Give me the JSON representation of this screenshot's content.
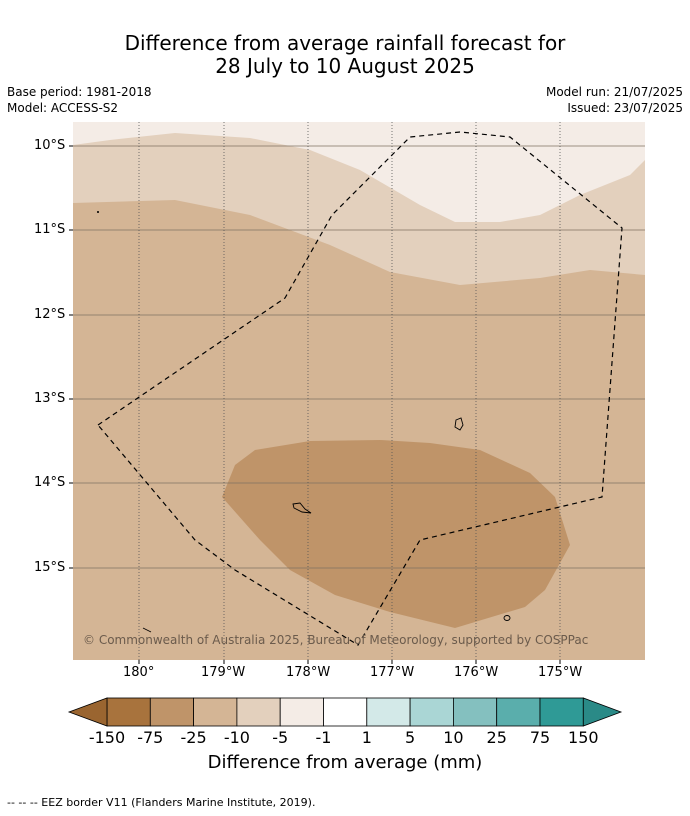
{
  "title_line1": "Difference from average rainfall forecast for",
  "title_line2": "28 July to 10 August 2025",
  "meta": {
    "base_period": "Base period: 1981-2018",
    "model": "Model: ACCESS-S2",
    "model_run": "Model run: 21/07/2025",
    "issued": "Issued: 23/07/2025"
  },
  "lat_labels": [
    "10°S",
    "11°S",
    "12°S",
    "13°S",
    "14°S",
    "15°S"
  ],
  "lon_labels": [
    "180°",
    "179°W",
    "178°W",
    "177°W",
    "176°W",
    "175°W"
  ],
  "copyright": "© Commonwealth of Australia 2025, Bureau of Meteorology, supported by COSPPac",
  "colorbar": {
    "labels": [
      "-150",
      "-75",
      "-25",
      "-10",
      "-5",
      "-1",
      "1",
      "5",
      "10",
      "25",
      "75",
      "150"
    ],
    "colors": [
      "#a8733d",
      "#bf9469",
      "#d4b595",
      "#e3d0bd",
      "#f4ece6",
      "#ffffff",
      "#d3e9e8",
      "#aad6d5",
      "#84c0bf",
      "#5aaeac",
      "#2f9a96"
    ],
    "extend_low_color": "#9a6530",
    "extend_high_color": "#2a8a87",
    "title": "Difference from average (mm)"
  },
  "footer": "--  --  -- EEZ border V11 (Flanders Marine Institute, 2019)."
}
